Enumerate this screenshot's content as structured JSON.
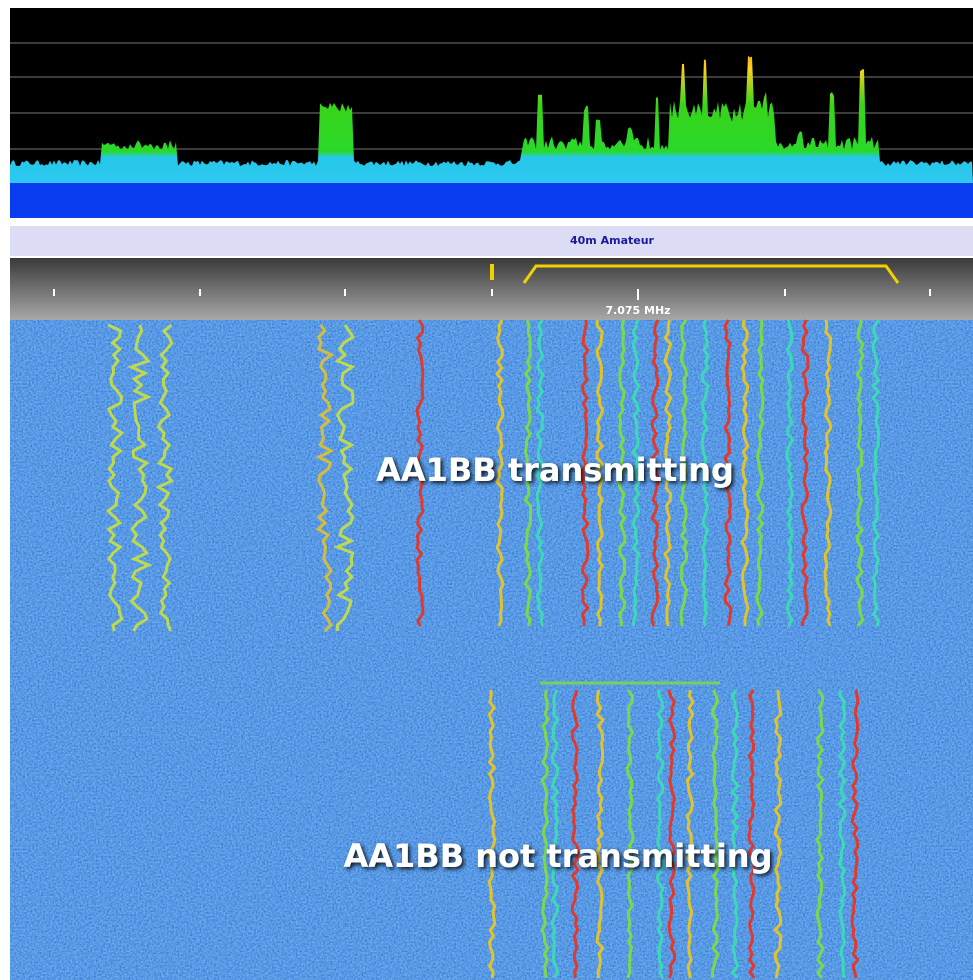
{
  "band_label": "40m Amateur",
  "frequency_label": "7.075 MHz",
  "annotations": [
    "AA1BB transmitting",
    "AA1BB not transmitting"
  ]
}
